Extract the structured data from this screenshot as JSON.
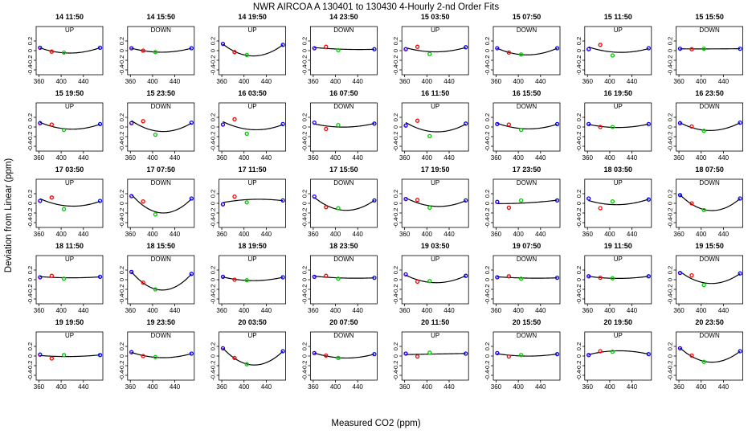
{
  "title": "NWR   AIRCOA A   130401 to 130430   4-Hourly 2-nd Order Fits",
  "xlabel": "Measured CO2 (ppm)",
  "ylabel": "Deviation from Linear (ppm)",
  "colors": {
    "curve": "#000000",
    "p1": "#0000ff",
    "p2": "#ff0000",
    "p3": "#00cc00",
    "p4": "#0000ff",
    "mark": "#cc00cc"
  },
  "chart_data": {
    "type": "scatter",
    "xlim": [
      355,
      475
    ],
    "ylim": [
      -0.5,
      0.5
    ],
    "xticks": [
      360,
      400,
      440
    ],
    "xtick_labels": [
      "360",
      "400",
      "440"
    ],
    "yticks": [
      -0.4,
      -0.2,
      0,
      0.2
    ],
    "ytick_labels": [
      "-0.4",
      "-0.2",
      "0",
      "0.2"
    ],
    "std_x": [
      362,
      383,
      405,
      470
    ],
    "panels": [
      {
        "title": "14 11:50",
        "dir": "UP",
        "y": [
          0.06,
          -0.02,
          -0.04,
          0.06
        ]
      },
      {
        "title": "14 15:50",
        "dir": "DOWN",
        "y": [
          0.05,
          0.0,
          -0.03,
          0.05
        ]
      },
      {
        "title": "14 19:50",
        "dir": "UP",
        "y": [
          0.14,
          -0.03,
          -0.09,
          0.12
        ]
      },
      {
        "title": "14 23:50",
        "dir": "DOWN",
        "y": [
          0.05,
          0.08,
          0.01,
          0.03
        ]
      },
      {
        "title": "15 03:50",
        "dir": "UP",
        "y": [
          0.03,
          0.08,
          -0.07,
          0.07
        ]
      },
      {
        "title": "15 07:50",
        "dir": "DOWN",
        "y": [
          0.05,
          -0.04,
          -0.08,
          0.05
        ]
      },
      {
        "title": "15 11:50",
        "dir": "UP",
        "y": [
          0.03,
          0.12,
          -0.1,
          0.05
        ]
      },
      {
        "title": "15 15:50",
        "dir": "DOWN",
        "y": [
          0.04,
          0.03,
          0.04,
          0.04
        ]
      },
      {
        "title": "15 19:50",
        "dir": "UP",
        "y": [
          0.08,
          0.05,
          -0.06,
          0.06
        ]
      },
      {
        "title": "15 23:50",
        "dir": "DOWN",
        "y": [
          0.08,
          0.12,
          -0.16,
          0.09
        ]
      },
      {
        "title": "16 03:50",
        "dir": "UP",
        "y": [
          0.05,
          0.16,
          -0.14,
          0.06
        ]
      },
      {
        "title": "16 07:50",
        "dir": "DOWN",
        "y": [
          0.09,
          -0.04,
          0.04,
          0.07
        ]
      },
      {
        "title": "16 11:50",
        "dir": "UP",
        "y": [
          0.03,
          0.13,
          -0.19,
          0.07
        ]
      },
      {
        "title": "16 15:50",
        "dir": "DOWN",
        "y": [
          0.06,
          0.05,
          -0.06,
          0.06
        ]
      },
      {
        "title": "16 19:50",
        "dir": "UP",
        "y": [
          0.06,
          0.0,
          0.0,
          0.06
        ]
      },
      {
        "title": "16 23:50",
        "dir": "DOWN",
        "y": [
          0.08,
          0.01,
          -0.08,
          0.09
        ]
      },
      {
        "title": "17 03:50",
        "dir": "UP",
        "y": [
          0.05,
          0.12,
          -0.12,
          0.05
        ]
      },
      {
        "title": "17 07:50",
        "dir": "DOWN",
        "y": [
          0.15,
          0.04,
          -0.23,
          0.1
        ]
      },
      {
        "title": "17 11:50",
        "dir": "UP",
        "y": [
          -0.02,
          0.14,
          0.02,
          0.06
        ]
      },
      {
        "title": "17 15:50",
        "dir": "DOWN",
        "y": [
          0.14,
          -0.08,
          -0.1,
          0.06
        ]
      },
      {
        "title": "17 19:50",
        "dir": "UP",
        "y": [
          0.09,
          0.07,
          -0.09,
          0.06
        ]
      },
      {
        "title": "17 23:50",
        "dir": "DOWN",
        "y": [
          0.03,
          -0.09,
          0.06,
          0.06
        ]
      },
      {
        "title": "18 03:50",
        "dir": "UP",
        "y": [
          0.1,
          -0.1,
          0.04,
          0.08
        ]
      },
      {
        "title": "18 07:50",
        "dir": "DOWN",
        "y": [
          0.17,
          0.0,
          -0.14,
          0.1
        ]
      },
      {
        "title": "18 11:50",
        "dir": "UP",
        "y": [
          0.05,
          0.08,
          0.02,
          0.06
        ]
      },
      {
        "title": "18 15:50",
        "dir": "DOWN",
        "y": [
          0.16,
          -0.06,
          -0.2,
          0.12
        ]
      },
      {
        "title": "18 19:50",
        "dir": "UP",
        "y": [
          0.06,
          0.0,
          -0.01,
          0.05
        ]
      },
      {
        "title": "18 23:50",
        "dir": "DOWN",
        "y": [
          0.06,
          0.08,
          0.02,
          0.04
        ]
      },
      {
        "title": "19 03:50",
        "dir": "UP",
        "y": [
          0.11,
          -0.04,
          -0.03,
          0.08
        ]
      },
      {
        "title": "19 07:50",
        "dir": "DOWN",
        "y": [
          0.05,
          0.07,
          0.02,
          0.04
        ]
      },
      {
        "title": "19 11:50",
        "dir": "UP",
        "y": [
          0.07,
          0.04,
          0.03,
          0.07
        ]
      },
      {
        "title": "19 15:50",
        "dir": "DOWN",
        "y": [
          0.14,
          0.09,
          -0.11,
          0.13
        ]
      },
      {
        "title": "19 19:50",
        "dir": "UP",
        "y": [
          0.03,
          -0.05,
          0.02,
          0.02
        ]
      },
      {
        "title": "19 23:50",
        "dir": "DOWN",
        "y": [
          0.08,
          0.0,
          -0.02,
          0.05
        ]
      },
      {
        "title": "20 03:50",
        "dir": "UP",
        "y": [
          0.16,
          -0.04,
          -0.17,
          0.1
        ]
      },
      {
        "title": "20 07:50",
        "dir": "DOWN",
        "y": [
          0.06,
          0.01,
          -0.04,
          0.04
        ]
      },
      {
        "title": "20 11:50",
        "dir": "UP",
        "y": [
          0.05,
          -0.01,
          0.07,
          0.05
        ]
      },
      {
        "title": "20 15:50",
        "dir": "DOWN",
        "y": [
          0.06,
          -0.01,
          0.02,
          0.04
        ]
      },
      {
        "title": "20 19:50",
        "dir": "UP",
        "y": [
          0.02,
          0.1,
          0.09,
          0.04
        ]
      },
      {
        "title": "20 23:50",
        "dir": "DOWN",
        "y": [
          0.16,
          0.01,
          -0.12,
          0.1
        ]
      }
    ]
  }
}
